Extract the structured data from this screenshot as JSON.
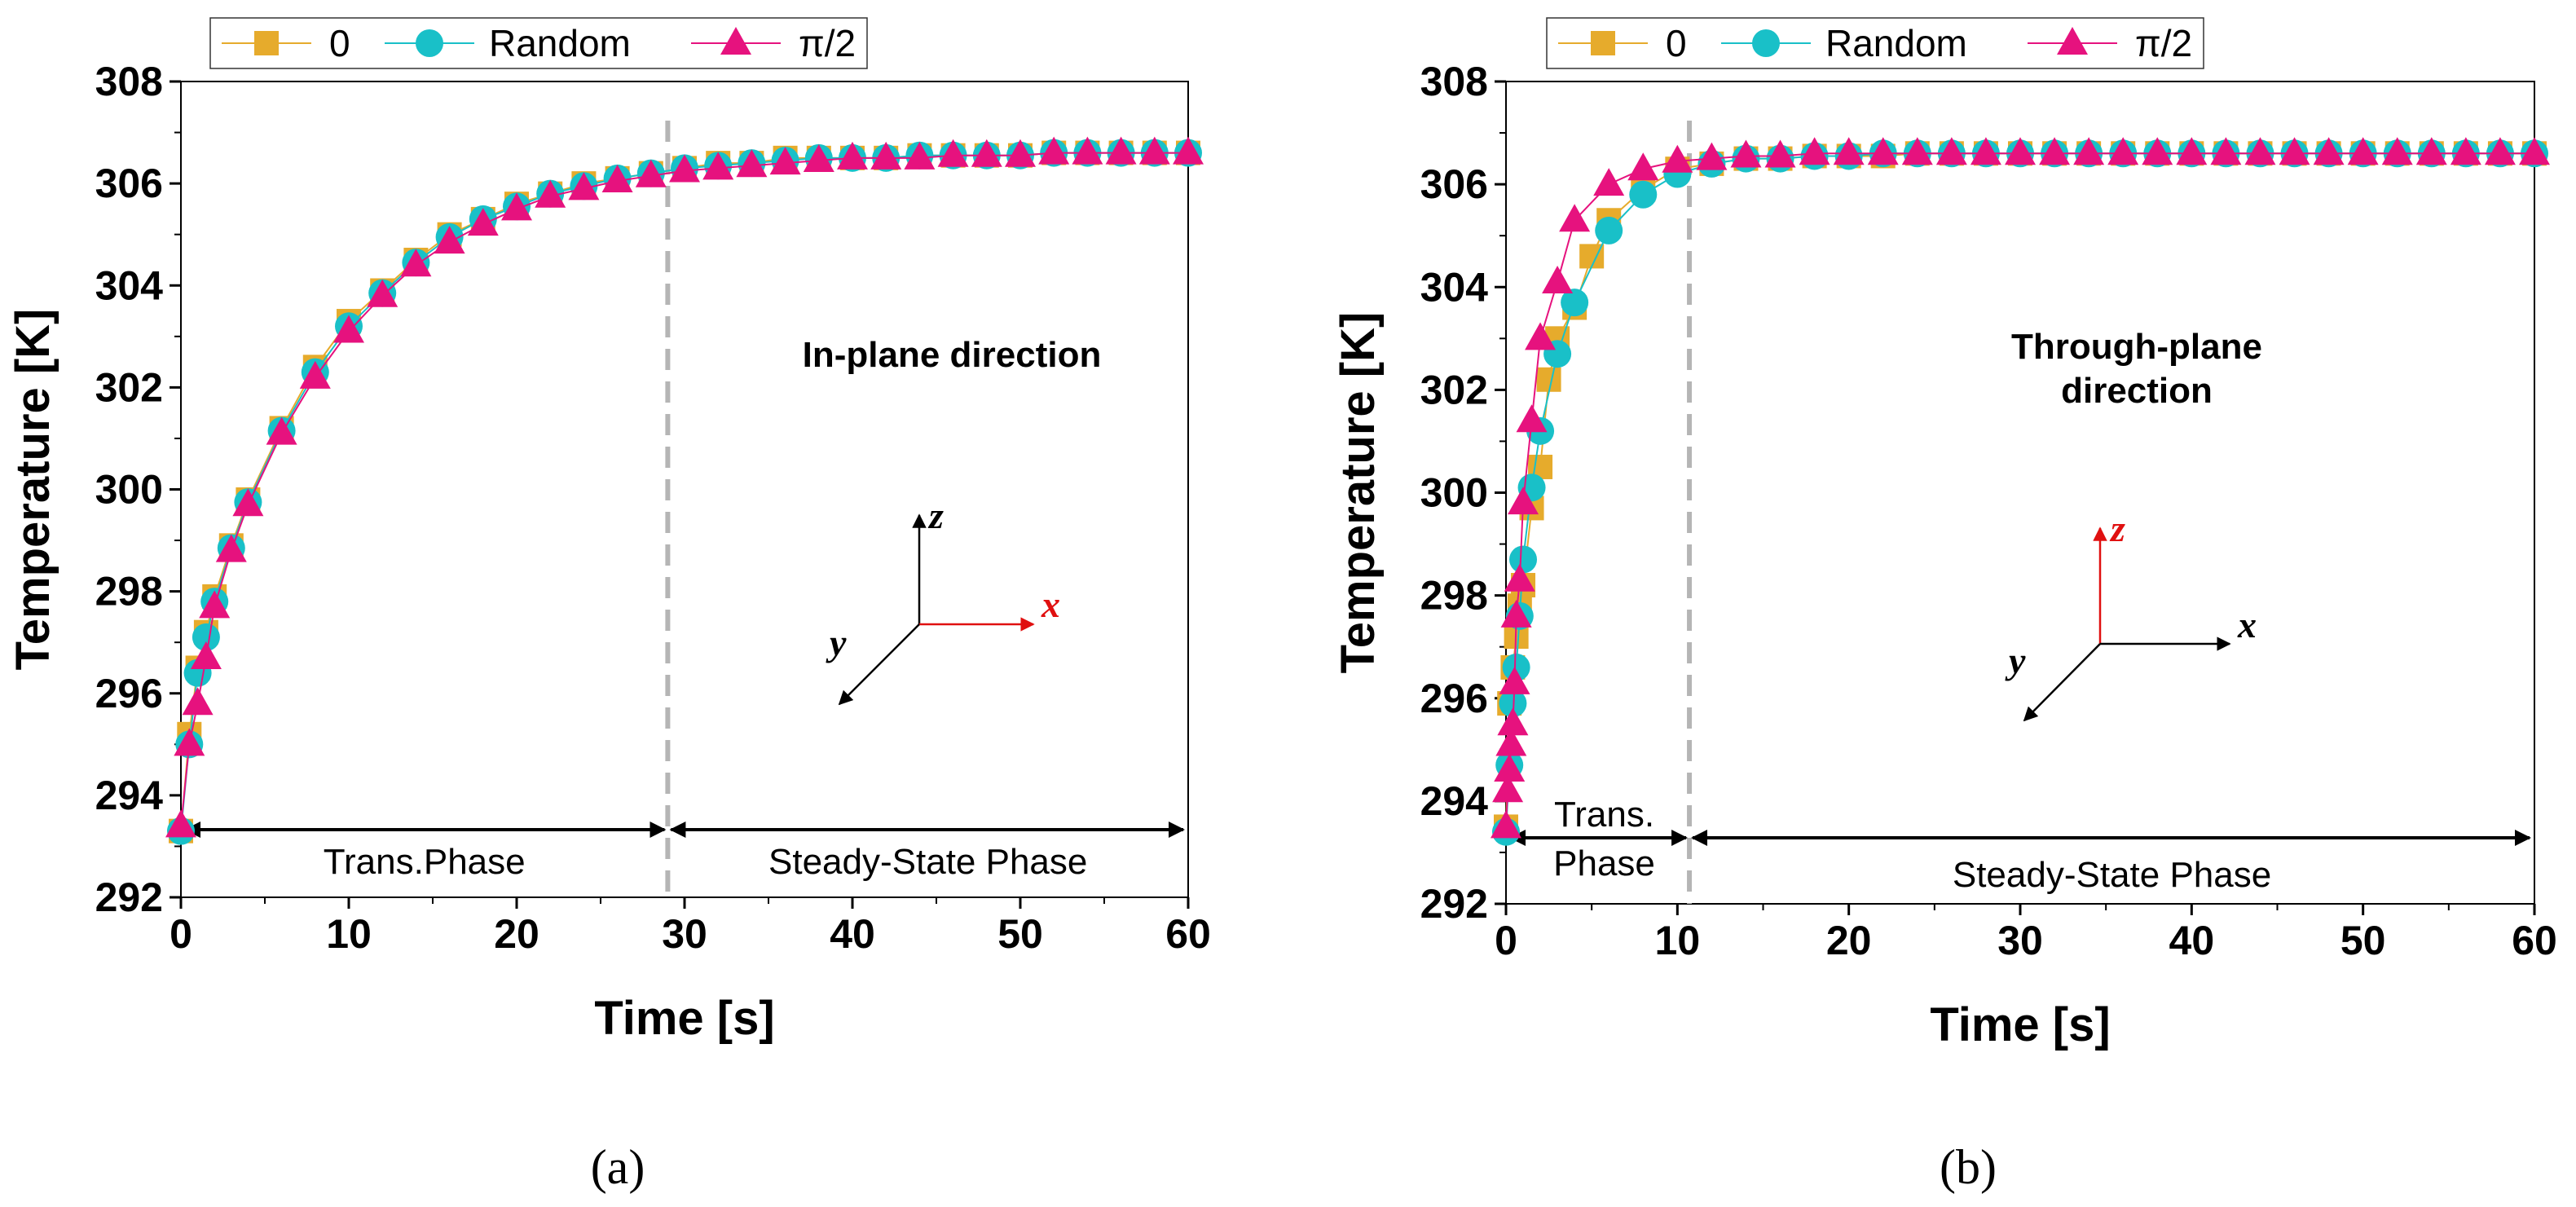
{
  "chart_data": [
    {
      "panel": "a",
      "caption": "(a)",
      "type": "line",
      "annotation": "In-plane direction",
      "xlabel": "Time [s]",
      "ylabel": "Temperature [K]",
      "xlim": [
        0,
        60
      ],
      "ylim": [
        292,
        308
      ],
      "xticks": [
        0,
        10,
        20,
        30,
        40,
        50,
        60
      ],
      "yticks": [
        292,
        294,
        296,
        298,
        300,
        302,
        304,
        306,
        308
      ],
      "transition_time": 29,
      "phase_labels": {
        "left": "Trans.Phase",
        "right": "Steady-State Phase"
      },
      "axes_labels": {
        "x": "x",
        "y": "y",
        "z": "z"
      },
      "highlight_axis": "x",
      "legend": {
        "placement": "top"
      },
      "model": {
        "T0": 293.2,
        "Tinf": 306.6,
        "tau": 7.8
      },
      "series": [
        {
          "name": "0",
          "marker": "square",
          "color": "#e6ab2c",
          "x": [
            0,
            0.5,
            1,
            1.5,
            2,
            3,
            4,
            6,
            8,
            10,
            12,
            14,
            16,
            18,
            20,
            22,
            24,
            26,
            28,
            30,
            32,
            34,
            36,
            38,
            40,
            42,
            44,
            46,
            48,
            50,
            52,
            54,
            56,
            58,
            60
          ],
          "y": [
            293.3,
            295.2,
            296.5,
            297.2,
            297.9,
            298.9,
            299.8,
            301.2,
            302.4,
            303.3,
            303.9,
            304.5,
            305.0,
            305.3,
            305.6,
            305.8,
            306.0,
            306.1,
            306.2,
            306.3,
            306.4,
            306.4,
            306.5,
            306.5,
            306.5,
            306.5,
            306.55,
            306.55,
            306.55,
            306.55,
            306.6,
            306.6,
            306.6,
            306.6,
            306.6
          ]
        },
        {
          "name": "Random",
          "marker": "circle",
          "color": "#19c0c8",
          "x": [
            0,
            0.5,
            1,
            1.5,
            2,
            3,
            4,
            6,
            8,
            10,
            12,
            14,
            16,
            18,
            20,
            22,
            24,
            26,
            28,
            30,
            32,
            34,
            36,
            38,
            40,
            42,
            44,
            46,
            48,
            50,
            52,
            54,
            56,
            58,
            60
          ],
          "y": [
            293.3,
            295.0,
            296.4,
            297.1,
            297.8,
            298.85,
            299.75,
            301.15,
            302.3,
            303.2,
            303.85,
            304.45,
            304.95,
            305.3,
            305.55,
            305.8,
            305.95,
            306.1,
            306.2,
            306.3,
            306.35,
            306.4,
            306.45,
            306.5,
            306.5,
            306.5,
            306.55,
            306.55,
            306.55,
            306.55,
            306.6,
            306.6,
            306.6,
            306.6,
            306.6
          ]
        },
        {
          "name": "π/2",
          "marker": "triangle",
          "color": "#e6127e",
          "x": [
            0,
            0.5,
            1,
            1.5,
            2,
            3,
            4,
            6,
            8,
            10,
            12,
            14,
            16,
            18,
            20,
            22,
            24,
            26,
            28,
            30,
            32,
            34,
            36,
            38,
            40,
            42,
            44,
            46,
            48,
            50,
            52,
            54,
            56,
            58,
            60
          ],
          "y": [
            293.4,
            295.0,
            295.8,
            296.7,
            297.7,
            298.8,
            299.7,
            301.1,
            302.2,
            303.1,
            303.8,
            304.4,
            304.85,
            305.2,
            305.5,
            305.75,
            305.9,
            306.05,
            306.15,
            306.25,
            306.3,
            306.35,
            306.4,
            306.45,
            306.5,
            306.5,
            306.5,
            306.55,
            306.55,
            306.55,
            306.6,
            306.6,
            306.6,
            306.6,
            306.6
          ]
        }
      ]
    },
    {
      "panel": "b",
      "caption": "(b)",
      "type": "line",
      "annotation": "Through-plane direction",
      "xlabel": "Time [s]",
      "ylabel": "Temperature [K]",
      "xlim": [
        0,
        60
      ],
      "ylim": [
        292,
        308
      ],
      "xticks": [
        0,
        10,
        20,
        30,
        40,
        50,
        60
      ],
      "yticks": [
        292,
        294,
        296,
        298,
        300,
        302,
        304,
        306,
        308
      ],
      "transition_time": 10.7,
      "phase_labels": {
        "left": "Trans. Phase",
        "right": "Steady-State Phase"
      },
      "axes_labels": {
        "x": "x",
        "y": "y",
        "z": "z"
      },
      "highlight_axis": "z",
      "legend": {
        "placement": "top"
      },
      "series": [
        {
          "name": "0",
          "marker": "square",
          "color": "#e6ab2c",
          "x": [
            0,
            0.2,
            0.4,
            0.6,
            0.8,
            1.0,
            1.5,
            2,
            2.5,
            3,
            4,
            5,
            6,
            8,
            10,
            12,
            14,
            16,
            18,
            20,
            22,
            24,
            26,
            28,
            30,
            32,
            34,
            36,
            38,
            40,
            42,
            44,
            46,
            48,
            50,
            52,
            54,
            56,
            58,
            60
          ],
          "y": [
            293.5,
            295.9,
            296.6,
            297.2,
            297.8,
            298.2,
            299.7,
            300.5,
            302.2,
            303.0,
            303.6,
            304.6,
            305.3,
            305.9,
            306.3,
            306.4,
            306.5,
            306.5,
            306.55,
            306.55,
            306.55,
            306.6,
            306.6,
            306.6,
            306.6,
            306.6,
            306.6,
            306.6,
            306.6,
            306.6,
            306.6,
            306.6,
            306.6,
            306.6,
            306.6,
            306.6,
            306.6,
            306.6,
            306.6,
            306.6
          ]
        },
        {
          "name": "Random",
          "marker": "circle",
          "color": "#19c0c8",
          "x": [
            0,
            0.2,
            0.4,
            0.6,
            0.8,
            1.0,
            1.5,
            2,
            3,
            4,
            6,
            8,
            10,
            12,
            14,
            16,
            18,
            20,
            22,
            24,
            26,
            28,
            30,
            32,
            34,
            36,
            38,
            40,
            42,
            44,
            46,
            48,
            50,
            52,
            54,
            56,
            58,
            60
          ],
          "y": [
            293.4,
            294.7,
            295.9,
            296.6,
            297.6,
            298.7,
            300.1,
            301.2,
            302.7,
            303.7,
            305.1,
            305.8,
            306.2,
            306.4,
            306.5,
            306.5,
            306.55,
            306.55,
            306.6,
            306.6,
            306.6,
            306.6,
            306.6,
            306.6,
            306.6,
            306.6,
            306.6,
            306.6,
            306.6,
            306.6,
            306.6,
            306.6,
            306.6,
            306.6,
            306.6,
            306.6,
            306.6,
            306.6
          ]
        },
        {
          "name": "π/2",
          "marker": "triangle",
          "color": "#e6127e",
          "x": [
            0,
            0.1,
            0.2,
            0.3,
            0.4,
            0.5,
            0.6,
            0.8,
            1.0,
            1.5,
            2,
            3,
            4,
            6,
            8,
            10,
            12,
            14,
            16,
            18,
            20,
            22,
            24,
            26,
            28,
            30,
            32,
            34,
            36,
            38,
            40,
            42,
            44,
            46,
            48,
            50,
            52,
            54,
            56,
            58,
            60
          ],
          "y": [
            293.5,
            294.2,
            294.6,
            295.1,
            295.5,
            296.3,
            297.6,
            298.3,
            299.8,
            301.4,
            303.0,
            304.1,
            305.3,
            306.0,
            306.3,
            306.45,
            306.5,
            306.55,
            306.55,
            306.6,
            306.6,
            306.6,
            306.6,
            306.6,
            306.6,
            306.6,
            306.6,
            306.6,
            306.6,
            306.6,
            306.6,
            306.6,
            306.6,
            306.6,
            306.6,
            306.6,
            306.6,
            306.6,
            306.6,
            306.6,
            306.6
          ]
        }
      ]
    }
  ]
}
